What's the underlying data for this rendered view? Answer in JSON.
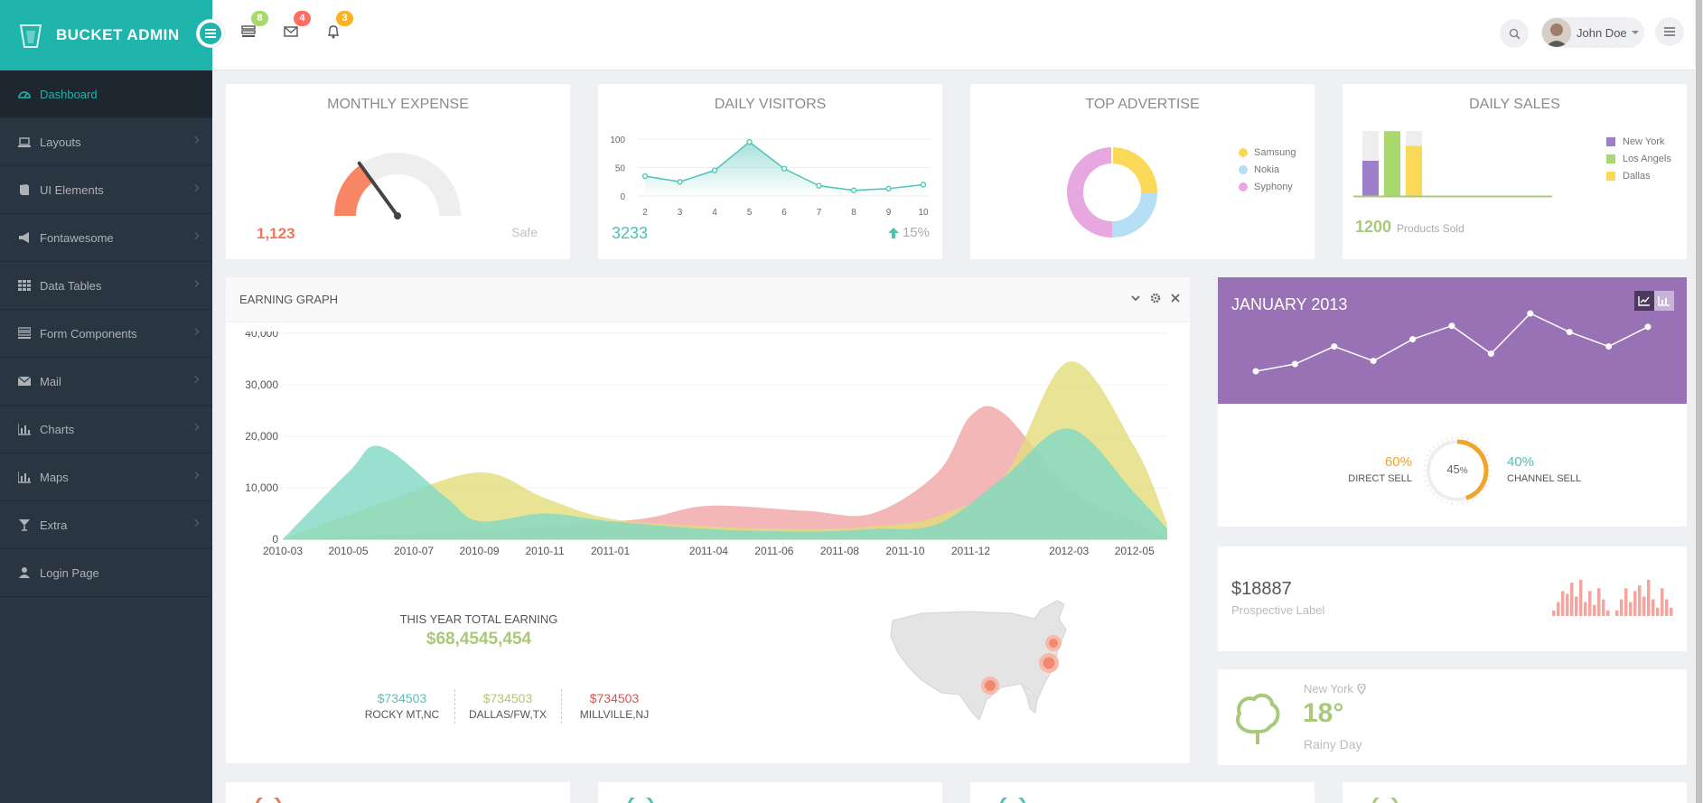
{
  "app": {
    "name": "BUCKET ADMIN"
  },
  "header": {
    "notifications": [
      {
        "icon": "tasks-icon",
        "count": "8",
        "color": "#a9d86e"
      },
      {
        "icon": "envelope-icon",
        "count": "4",
        "color": "#ff6c60"
      },
      {
        "icon": "bell-icon",
        "count": "3",
        "color": "#fcb322"
      }
    ],
    "user_name": "John Doe"
  },
  "sidebar": {
    "items": [
      {
        "label": "Dashboard",
        "icon": "dashboard-icon",
        "active": true
      },
      {
        "label": "Layouts",
        "icon": "laptop-icon"
      },
      {
        "label": "UI Elements",
        "icon": "book-icon"
      },
      {
        "label": "Fontawesome",
        "icon": "bullhorn-icon"
      },
      {
        "label": "Data Tables",
        "icon": "th-icon"
      },
      {
        "label": "Form Components",
        "icon": "tasks-icon"
      },
      {
        "label": "Mail",
        "icon": "envelope-icon"
      },
      {
        "label": "Charts",
        "icon": "bar-chart-icon"
      },
      {
        "label": "Maps",
        "icon": "bar-chart-icon"
      },
      {
        "label": "Extra",
        "icon": "glass-icon"
      },
      {
        "label": "Login Page",
        "icon": "user-icon"
      }
    ]
  },
  "monthly_expense": {
    "title": "MONTHLY EXPENSE",
    "value": "1,123",
    "status": "Safe",
    "gauge_fraction": 0.3
  },
  "daily_visitors": {
    "title": "DAILY VISITORS",
    "value": "3233",
    "change": "15%",
    "chart_data": {
      "type": "line",
      "x": [
        2,
        3,
        4,
        5,
        6,
        7,
        8,
        9,
        10
      ],
      "values": [
        35,
        25,
        45,
        95,
        48,
        18,
        10,
        13,
        20
      ],
      "yticks": [
        "100",
        "50",
        "0"
      ],
      "ylim": [
        0,
        100
      ]
    }
  },
  "top_advertise": {
    "title": "TOP ADVERTISE",
    "chart_data": {
      "type": "pie",
      "labels": [
        "Samsung",
        "Nokia",
        "Syphony"
      ],
      "values": [
        25,
        25,
        50
      ],
      "colors": [
        "#fad959",
        "#b5dff4",
        "#e7a8e2"
      ]
    }
  },
  "daily_sales": {
    "title": "DAILY SALES",
    "value": "1200",
    "label": "Products Sold",
    "chart_data": {
      "type": "bar",
      "series": [
        {
          "name": "New York",
          "value": 0.5,
          "color": "#9d7fcc"
        },
        {
          "name": "Los Angels",
          "value": 0.92,
          "color": "#a9d86e"
        },
        {
          "name": "Dallas",
          "value": 0.71,
          "color": "#fad959"
        }
      ]
    }
  },
  "earning": {
    "title": "EARNING GRAPH",
    "total_label": "THIS YEAR TOTAL EARNING",
    "total_value": "$68,4545,454",
    "stats": [
      {
        "value": "$734503",
        "label": "ROCKY MT,NC",
        "color": "#5bc0b8"
      },
      {
        "value": "$734503",
        "label": "DALLAS/FW,TX",
        "color": "#b0c96b"
      },
      {
        "value": "$734503",
        "label": "MILLVILLE,NJ",
        "color": "#d9534f"
      }
    ],
    "chart_data": {
      "type": "area",
      "y_ticks": [
        "40,000",
        "30,000",
        "20,000",
        "10,000",
        "0"
      ],
      "ylim": [
        0,
        40000
      ],
      "x_labels": [
        "2010-03",
        "2010-05",
        "2010-07",
        "2010-09",
        "2010-11",
        "2011-01",
        "2011-04",
        "2011-06",
        "2011-08",
        "2011-10",
        "2011-12",
        "2012-03",
        "2012-05"
      ],
      "x_months": [
        0,
        2,
        4,
        6,
        8,
        10,
        13,
        15,
        17,
        19,
        21,
        24,
        26
      ],
      "series": [
        {
          "color": "#f0a5a5",
          "points": [
            [
              0,
              0
            ],
            [
              4,
              1000
            ],
            [
              8,
              2500
            ],
            [
              11,
              4000
            ],
            [
              13,
              6500
            ],
            [
              16,
              5500
            ],
            [
              18,
              5000
            ],
            [
              20,
              13000
            ],
            [
              21,
              24000
            ],
            [
              22,
              24500
            ],
            [
              24,
              10000
            ],
            [
              26,
              3500
            ],
            [
              27,
              0
            ]
          ]
        },
        {
          "color": "#e2dc7b",
          "points": [
            [
              0,
              0
            ],
            [
              3,
              7000
            ],
            [
              6,
              13000
            ],
            [
              8,
              8000
            ],
            [
              10,
              4000
            ],
            [
              13,
              2500
            ],
            [
              16,
              2000
            ],
            [
              18,
              2500
            ],
            [
              20,
              4500
            ],
            [
              22,
              12000
            ],
            [
              24,
              34500
            ],
            [
              26,
              18000
            ],
            [
              27,
              3000
            ]
          ]
        },
        {
          "color": "#7fd8c6",
          "points": [
            [
              0,
              0
            ],
            [
              2,
              13000
            ],
            [
              3,
              18000
            ],
            [
              5,
              8000
            ],
            [
              6,
              3500
            ],
            [
              8,
              5000
            ],
            [
              10,
              3500
            ],
            [
              13,
              2000
            ],
            [
              16,
              1500
            ],
            [
              18,
              2000
            ],
            [
              20,
              3000
            ],
            [
              22,
              12000
            ],
            [
              24,
              21500
            ],
            [
              26,
              9000
            ],
            [
              27,
              2000
            ]
          ]
        }
      ]
    }
  },
  "january": {
    "title": "JANUARY 2013",
    "chart_data": {
      "type": "line",
      "values": [
        14,
        21,
        38,
        24,
        45,
        58,
        31,
        70,
        52,
        38,
        57
      ]
    },
    "direct_sell": {
      "value": "60%",
      "label": "DIRECT SELL"
    },
    "channel_sell": {
      "value": "40%",
      "label": "CHANNEL SELL"
    },
    "gauge": {
      "value": "45",
      "unit": "%",
      "fraction": 0.45
    }
  },
  "prospective": {
    "value": "$18887",
    "label": "Prospective Label",
    "chart_data": {
      "type": "bar",
      "values": [
        2,
        5,
        9,
        8,
        12,
        7,
        13,
        5,
        9,
        4,
        10,
        6,
        2,
        0,
        2,
        6,
        10,
        5,
        9,
        11,
        7,
        13,
        6,
        3,
        10,
        6,
        3
      ]
    }
  },
  "weather": {
    "city": "New York",
    "temp": "18°",
    "condition": "Rainy Day"
  }
}
